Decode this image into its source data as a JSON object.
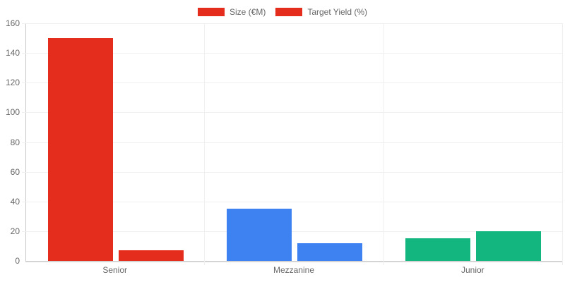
{
  "chart_data": {
    "type": "bar",
    "title": "",
    "categories": [
      "Senior",
      "Mezzanine",
      "Junior"
    ],
    "series": [
      {
        "name": "Size (€M)",
        "values": [
          150,
          35,
          15
        ]
      },
      {
        "name": "Target Yield (%)",
        "values": [
          7,
          12,
          20
        ]
      }
    ],
    "category_colors": [
      "#e42d1c",
      "#3e82f2",
      "#14b680"
    ],
    "legend": {
      "position": "top",
      "swatch_color": "#e42d1c",
      "items": [
        "Size (€M)",
        "Target Yield (%)"
      ]
    },
    "y_axis": {
      "min": 0,
      "max": 160,
      "step": 20,
      "tick_labels": [
        "0",
        "20",
        "40",
        "60",
        "80",
        "100",
        "120",
        "140",
        "160"
      ]
    },
    "x_axis": {
      "labels": [
        "Senior",
        "Mezzanine",
        "Junior"
      ]
    },
    "grid": {
      "horizontal": true,
      "vertical_category_boundaries": true,
      "color": "#efefef"
    },
    "colors": {
      "axis": "#cfcfcf",
      "text": "#666666",
      "background": "#ffffff"
    }
  }
}
